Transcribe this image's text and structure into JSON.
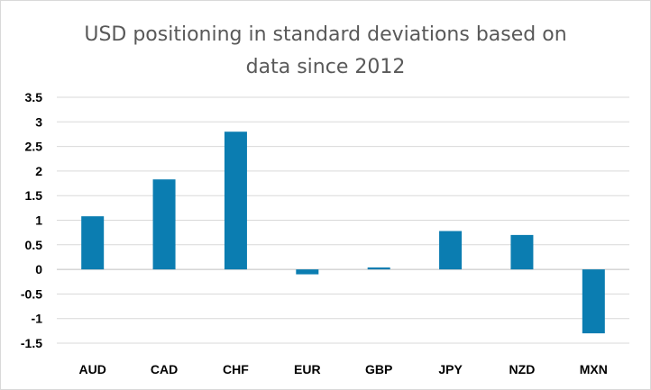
{
  "chart_data": {
    "type": "bar",
    "title_lines": [
      "USD positioning in standard deviations based on",
      "data since 2012"
    ],
    "categories": [
      "AUD",
      "CAD",
      "CHF",
      "EUR",
      "GBP",
      "JPY",
      "NZD",
      "MXN"
    ],
    "values": [
      1.08,
      1.83,
      2.8,
      -0.1,
      0.04,
      0.78,
      0.7,
      -1.3
    ],
    "ylim": [
      -1.5,
      3.5
    ],
    "yticks": [
      "3.5",
      "3",
      "2.5",
      "2",
      "1.5",
      "1",
      "0.5",
      "0",
      "-0.5",
      "-1",
      "-1.5"
    ],
    "grid": true,
    "bar_color": "#0B7DB1"
  }
}
